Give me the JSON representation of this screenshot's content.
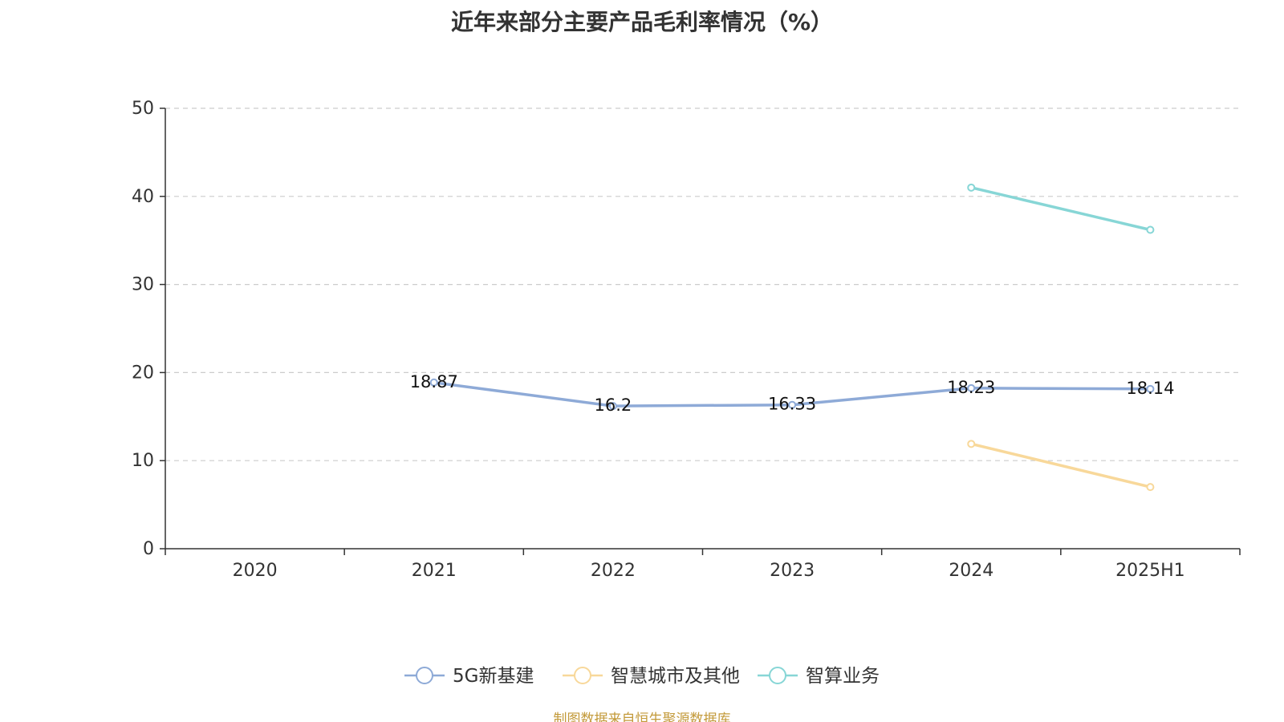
{
  "chart_data": {
    "type": "line",
    "title": "近年来部分主要产品毛利率情况（%）",
    "categories": [
      "2020",
      "2021",
      "2022",
      "2023",
      "2024",
      "2025H1"
    ],
    "ylim": [
      0,
      50
    ],
    "yticks": [
      0,
      10,
      20,
      30,
      40,
      50
    ],
    "grid": true,
    "legend_placement": "bottom",
    "series": [
      {
        "name": "5G新基建",
        "color": "#8eaad7",
        "values": [
          null,
          18.87,
          16.2,
          16.33,
          18.23,
          18.14
        ],
        "labels": [
          "",
          "18.87",
          "16.2",
          "16.33",
          "18.23",
          "18.14"
        ]
      },
      {
        "name": "智慧城市及其他",
        "color": "#f8d89a",
        "values": [
          null,
          null,
          null,
          null,
          11.9,
          7.0
        ],
        "labels": [
          "",
          "",
          "",
          "",
          "",
          ""
        ]
      },
      {
        "name": "智算业务",
        "color": "#87d6d6",
        "values": [
          null,
          null,
          null,
          null,
          41.0,
          36.2
        ],
        "labels": [
          "",
          "",
          "",
          "",
          "",
          ""
        ]
      }
    ]
  },
  "source_note": "制图数据来自恒生聚源数据库"
}
